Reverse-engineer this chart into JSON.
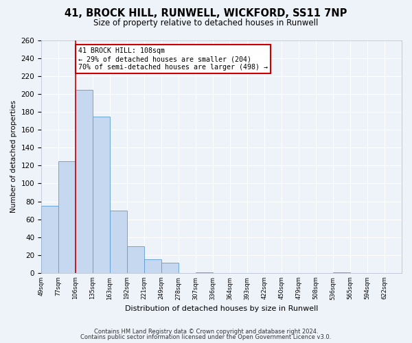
{
  "title": "41, BROCK HILL, RUNWELL, WICKFORD, SS11 7NP",
  "subtitle": "Size of property relative to detached houses in Runwell",
  "xlabel": "Distribution of detached houses by size in Runwell",
  "ylabel": "Number of detached properties",
  "bin_labels": [
    "49sqm",
    "77sqm",
    "106sqm",
    "135sqm",
    "163sqm",
    "192sqm",
    "221sqm",
    "249sqm",
    "278sqm",
    "307sqm",
    "336sqm",
    "364sqm",
    "393sqm",
    "422sqm",
    "450sqm",
    "479sqm",
    "508sqm",
    "536sqm",
    "565sqm",
    "594sqm",
    "622sqm"
  ],
  "bar_heights": [
    75,
    125,
    205,
    175,
    70,
    30,
    15,
    11,
    0,
    1,
    0,
    0,
    0,
    0,
    0,
    0,
    0,
    1,
    0,
    0,
    0
  ],
  "bar_color": "#c5d8ef",
  "bar_edge_color": "#5b9bd5",
  "annotation_title": "41 BROCK HILL: 108sqm",
  "annotation_line1": "← 29% of detached houses are smaller (204)",
  "annotation_line2": "70% of semi-detached houses are larger (498) →",
  "annotation_box_color": "#ffffff",
  "annotation_box_edge_color": "#cc0000",
  "vline_color": "#cc0000",
  "ylim": [
    0,
    260
  ],
  "yticks": [
    0,
    20,
    40,
    60,
    80,
    100,
    120,
    140,
    160,
    180,
    200,
    220,
    240,
    260
  ],
  "footer_line1": "Contains HM Land Registry data © Crown copyright and database right 2024.",
  "footer_line2": "Contains public sector information licensed under the Open Government Licence v3.0.",
  "background_color": "#eef2f9",
  "grid_color": "#ffffff"
}
